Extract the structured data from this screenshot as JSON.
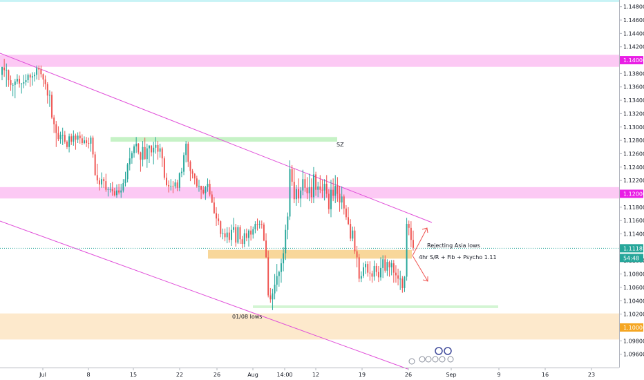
{
  "chart_data": {
    "type": "candlestick",
    "y_axis": {
      "min": 1.094,
      "max": 1.149,
      "tick_labels": [
        "1.14800",
        "1.14600",
        "1.14400",
        "1.14200",
        "1.14000",
        "1.13800",
        "1.13600",
        "1.13400",
        "1.13200",
        "1.13000",
        "1.12800",
        "1.12600",
        "1.12400",
        "1.12200",
        "1.12000",
        "1.11800",
        "1.11600",
        "1.11400",
        "1.11185",
        "1.11000",
        "1.10800",
        "1.10600",
        "1.10400",
        "1.10200",
        "1.10000",
        "1.09800",
        "1.09600"
      ],
      "tick_values": [
        1.148,
        1.146,
        1.144,
        1.142,
        1.14,
        1.138,
        1.136,
        1.134,
        1.132,
        1.13,
        1.128,
        1.126,
        1.124,
        1.122,
        1.12,
        1.118,
        1.116,
        1.114,
        1.11185,
        1.11,
        1.108,
        1.106,
        1.104,
        1.102,
        1.1,
        1.098,
        1.096
      ]
    },
    "x_axis": {
      "tick_labels": [
        "Jul",
        "8",
        "15",
        "22",
        "26",
        "Aug",
        "14:00",
        "12",
        "19",
        "26",
        "Sep",
        "9",
        "16",
        "23"
      ]
    },
    "price_tags": [
      {
        "label": "1.14000",
        "value": 1.14,
        "color": "#e91fe5"
      },
      {
        "label": "1.12000",
        "value": 1.12,
        "color": "#e91fe5"
      },
      {
        "label": "1.11185",
        "value": 1.11185,
        "color": "#26a69a"
      },
      {
        "label": "54:48",
        "value": 1.1104,
        "color": "#26a69a"
      },
      {
        "label": "1.10000",
        "value": 1.1,
        "color": "#f5a623"
      }
    ],
    "zones": [
      {
        "name": "top-band",
        "from": 1.1487,
        "to": 1.1495,
        "color": "#c8f3f6"
      },
      {
        "name": "resistance-1.14",
        "from": 1.139,
        "to": 1.1408,
        "color": "#fcc9f4"
      },
      {
        "name": "resistance-1.12",
        "from": 1.1193,
        "to": 1.121,
        "color": "#fcc9f4"
      },
      {
        "name": "support-1.11",
        "from": 1.1103,
        "to": 1.1116,
        "color": "#f8d79a"
      },
      {
        "name": "support-1.10",
        "from": 1.0982,
        "to": 1.1021,
        "color": "#fde9cc"
      },
      {
        "name": "sz-zone",
        "from": 1.1278,
        "to": 1.1285,
        "color": "#c6f2c6"
      },
      {
        "name": "aug-lows-zone",
        "from": 1.1029,
        "to": 1.1033,
        "color": "#d3f5d3"
      }
    ],
    "annotations": [
      "SZ",
      "Rejecting Asia lows",
      "4hr S/R + Fib + Psycho 1.11",
      "01/08 lows"
    ],
    "current_price": 1.11185,
    "candles": [
      [
        1.1378,
        1.1389,
        1.137,
        1.139
      ],
      [
        1.1389,
        1.1402,
        1.1375,
        1.1385
      ],
      [
        1.1385,
        1.1395,
        1.136,
        1.1385
      ],
      [
        1.1385,
        1.1386,
        1.136,
        1.137
      ],
      [
        1.137,
        1.1377,
        1.1354,
        1.1363
      ],
      [
        1.1363,
        1.1366,
        1.1346,
        1.1363
      ],
      [
        1.1363,
        1.1372,
        1.1343,
        1.1368
      ],
      [
        1.1368,
        1.1379,
        1.1364,
        1.1372
      ],
      [
        1.1372,
        1.1377,
        1.1359,
        1.1365
      ],
      [
        1.1365,
        1.1366,
        1.135,
        1.1365
      ],
      [
        1.1365,
        1.1378,
        1.1358,
        1.1367
      ],
      [
        1.1367,
        1.1379,
        1.1362,
        1.137
      ],
      [
        1.137,
        1.138,
        1.1366,
        1.1378
      ],
      [
        1.1378,
        1.138,
        1.136,
        1.1374
      ],
      [
        1.1374,
        1.1382,
        1.1362,
        1.1376
      ],
      [
        1.1376,
        1.1382,
        1.1368,
        1.1378
      ],
      [
        1.1378,
        1.1392,
        1.1371,
        1.1388
      ],
      [
        1.1388,
        1.1392,
        1.137,
        1.1386
      ],
      [
        1.1386,
        1.1392,
        1.1374,
        1.1379
      ],
      [
        1.1379,
        1.138,
        1.136,
        1.1371
      ],
      [
        1.1371,
        1.1377,
        1.1356,
        1.1364
      ],
      [
        1.1364,
        1.1367,
        1.1335,
        1.1347
      ],
      [
        1.1347,
        1.1355,
        1.133,
        1.1348
      ],
      [
        1.1348,
        1.1353,
        1.1312,
        1.1314
      ],
      [
        1.1314,
        1.1318,
        1.1291,
        1.1304
      ],
      [
        1.1304,
        1.1309,
        1.127,
        1.1291
      ],
      [
        1.1291,
        1.1301,
        1.1279,
        1.1282
      ],
      [
        1.1282,
        1.1293,
        1.1275,
        1.1288
      ],
      [
        1.1288,
        1.1299,
        1.1273,
        1.1288
      ],
      [
        1.1288,
        1.1294,
        1.1275,
        1.1278
      ],
      [
        1.1278,
        1.128,
        1.1267,
        1.127
      ],
      [
        1.127,
        1.129,
        1.1262,
        1.1286
      ],
      [
        1.1286,
        1.129,
        1.1273,
        1.1278
      ],
      [
        1.1278,
        1.1295,
        1.1272,
        1.1287
      ],
      [
        1.1287,
        1.129,
        1.1266,
        1.1281
      ],
      [
        1.1281,
        1.1292,
        1.1276,
        1.1287
      ],
      [
        1.1287,
        1.1293,
        1.1275,
        1.1283
      ],
      [
        1.1283,
        1.1289,
        1.1273,
        1.1276
      ],
      [
        1.1276,
        1.1286,
        1.1274,
        1.128
      ],
      [
        1.128,
        1.1285,
        1.127,
        1.1276
      ],
      [
        1.1276,
        1.1284,
        1.1268,
        1.1275
      ],
      [
        1.1275,
        1.1287,
        1.1263,
        1.1284
      ],
      [
        1.1284,
        1.1287,
        1.1254,
        1.1259
      ],
      [
        1.1259,
        1.1263,
        1.1227,
        1.1228
      ],
      [
        1.1228,
        1.1245,
        1.1215,
        1.122
      ],
      [
        1.122,
        1.1224,
        1.1205,
        1.1214
      ],
      [
        1.1214,
        1.1232,
        1.1209,
        1.1222
      ],
      [
        1.1222,
        1.1225,
        1.1209,
        1.1219
      ],
      [
        1.1219,
        1.123,
        1.1203,
        1.1206
      ],
      [
        1.1206,
        1.121,
        1.1196,
        1.1207
      ],
      [
        1.1207,
        1.1216,
        1.1202,
        1.1207
      ],
      [
        1.1207,
        1.1218,
        1.1197,
        1.1204
      ],
      [
        1.1204,
        1.1209,
        1.1196,
        1.1198
      ],
      [
        1.1198,
        1.1214,
        1.1194,
        1.1205
      ],
      [
        1.1205,
        1.1215,
        1.1199,
        1.1202
      ],
      [
        1.1202,
        1.1215,
        1.1194,
        1.1205
      ],
      [
        1.1205,
        1.1222,
        1.1202,
        1.1216
      ],
      [
        1.1216,
        1.1233,
        1.1211,
        1.1222
      ],
      [
        1.1222,
        1.1246,
        1.1217,
        1.1244
      ],
      [
        1.1244,
        1.1269,
        1.1235,
        1.1253
      ],
      [
        1.1253,
        1.1264,
        1.1245,
        1.1261
      ],
      [
        1.1261,
        1.1274,
        1.1254,
        1.1271
      ],
      [
        1.1271,
        1.1285,
        1.1261,
        1.1275
      ],
      [
        1.1275,
        1.1276,
        1.1259,
        1.1262
      ],
      [
        1.1262,
        1.1263,
        1.1233,
        1.1251
      ],
      [
        1.1251,
        1.1279,
        1.1241,
        1.127
      ],
      [
        1.127,
        1.1284,
        1.1251,
        1.1252
      ],
      [
        1.1252,
        1.1275,
        1.1239,
        1.1268
      ],
      [
        1.1268,
        1.1273,
        1.1246,
        1.1272
      ],
      [
        1.1272,
        1.1273,
        1.1256,
        1.1262
      ],
      [
        1.1262,
        1.1278,
        1.1244,
        1.1269
      ],
      [
        1.1269,
        1.1285,
        1.126,
        1.1273
      ],
      [
        1.1273,
        1.1279,
        1.1251,
        1.1263
      ],
      [
        1.1263,
        1.1275,
        1.1254,
        1.1268
      ],
      [
        1.1268,
        1.127,
        1.124,
        1.1253
      ],
      [
        1.1253,
        1.1256,
        1.1221,
        1.1224
      ],
      [
        1.1224,
        1.1231,
        1.1211,
        1.1213
      ],
      [
        1.1213,
        1.122,
        1.1202,
        1.1211
      ],
      [
        1.1211,
        1.1222,
        1.1205,
        1.1212
      ],
      [
        1.1212,
        1.1219,
        1.1201,
        1.1211
      ],
      [
        1.1211,
        1.1222,
        1.1208,
        1.1217
      ],
      [
        1.1217,
        1.1221,
        1.1204,
        1.1209
      ],
      [
        1.1209,
        1.1232,
        1.1204,
        1.1231
      ],
      [
        1.1231,
        1.1239,
        1.1225,
        1.1233
      ],
      [
        1.1233,
        1.1262,
        1.1228,
        1.1258
      ],
      [
        1.1258,
        1.1279,
        1.1247,
        1.1275
      ],
      [
        1.1275,
        1.1278,
        1.124,
        1.1248
      ],
      [
        1.1248,
        1.125,
        1.1219,
        1.1234
      ],
      [
        1.1234,
        1.1237,
        1.1223,
        1.123
      ],
      [
        1.123,
        1.1231,
        1.1214,
        1.1223
      ],
      [
        1.1223,
        1.1227,
        1.1209,
        1.1211
      ],
      [
        1.1211,
        1.1221,
        1.1203,
        1.1212
      ],
      [
        1.1212,
        1.1212,
        1.1192,
        1.1206
      ],
      [
        1.1206,
        1.1212,
        1.1199,
        1.1201
      ],
      [
        1.1201,
        1.1212,
        1.1191,
        1.121
      ],
      [
        1.121,
        1.1223,
        1.1203,
        1.1215
      ],
      [
        1.1215,
        1.1221,
        1.1196,
        1.1199
      ],
      [
        1.1199,
        1.1204,
        1.1186,
        1.1187
      ],
      [
        1.1187,
        1.1195,
        1.117,
        1.1171
      ],
      [
        1.1171,
        1.118,
        1.1152,
        1.1163
      ],
      [
        1.1163,
        1.117,
        1.1153,
        1.1159
      ],
      [
        1.1159,
        1.116,
        1.1135,
        1.114
      ],
      [
        1.114,
        1.1148,
        1.1132,
        1.1141
      ],
      [
        1.1141,
        1.1148,
        1.1129,
        1.1135
      ],
      [
        1.1135,
        1.115,
        1.1126,
        1.1142
      ],
      [
        1.1142,
        1.115,
        1.1127,
        1.1131
      ],
      [
        1.1131,
        1.1154,
        1.1122,
        1.1146
      ],
      [
        1.1146,
        1.1164,
        1.1142,
        1.115
      ],
      [
        1.115,
        1.1155,
        1.1121,
        1.1127
      ],
      [
        1.1127,
        1.1153,
        1.1125,
        1.115
      ],
      [
        1.115,
        1.1153,
        1.1125,
        1.1132
      ],
      [
        1.1132,
        1.1137,
        1.1119,
        1.1125
      ],
      [
        1.1125,
        1.1147,
        1.112,
        1.1141
      ],
      [
        1.1141,
        1.1148,
        1.1129,
        1.1134
      ],
      [
        1.1134,
        1.1147,
        1.1121,
        1.1145
      ],
      [
        1.1145,
        1.1152,
        1.113,
        1.1139
      ],
      [
        1.1139,
        1.1151,
        1.1133,
        1.1147
      ],
      [
        1.1147,
        1.1159,
        1.1141,
        1.1155
      ],
      [
        1.1155,
        1.1163,
        1.1145,
        1.1154
      ],
      [
        1.1154,
        1.116,
        1.1148,
        1.1155
      ],
      [
        1.1155,
        1.116,
        1.1148,
        1.1154
      ],
      [
        1.1154,
        1.1157,
        1.1129,
        1.113
      ],
      [
        1.113,
        1.1141,
        1.1104,
        1.1105
      ],
      [
        1.1105,
        1.1115,
        1.1045,
        1.1048
      ],
      [
        1.1048,
        1.1059,
        1.1037,
        1.1042
      ],
      [
        1.1042,
        1.1058,
        1.1026,
        1.1051
      ],
      [
        1.1051,
        1.108,
        1.1042,
        1.1064
      ],
      [
        1.1064,
        1.1095,
        1.1054,
        1.1077
      ],
      [
        1.1077,
        1.1085,
        1.1061,
        1.1083
      ],
      [
        1.1083,
        1.1103,
        1.1067,
        1.1096
      ],
      [
        1.1096,
        1.112,
        1.1084,
        1.1111
      ],
      [
        1.1111,
        1.1154,
        1.1101,
        1.1146
      ],
      [
        1.1146,
        1.1172,
        1.1132,
        1.1166
      ],
      [
        1.1166,
        1.125,
        1.1161,
        1.1237
      ],
      [
        1.1237,
        1.1243,
        1.1212,
        1.1218
      ],
      [
        1.1218,
        1.1238,
        1.1186,
        1.1192
      ],
      [
        1.1192,
        1.1213,
        1.1182,
        1.1207
      ],
      [
        1.1207,
        1.1223,
        1.1186,
        1.1193
      ],
      [
        1.1193,
        1.121,
        1.118,
        1.1205
      ],
      [
        1.1205,
        1.1236,
        1.1198,
        1.1222
      ],
      [
        1.1222,
        1.123,
        1.1203,
        1.1209
      ],
      [
        1.1209,
        1.1225,
        1.1192,
        1.1201
      ],
      [
        1.1201,
        1.123,
        1.1189,
        1.121
      ],
      [
        1.121,
        1.1223,
        1.1186,
        1.1195
      ],
      [
        1.1195,
        1.124,
        1.1186,
        1.1229
      ],
      [
        1.1229,
        1.1233,
        1.1197,
        1.1206
      ],
      [
        1.1206,
        1.1218,
        1.1195,
        1.1211
      ],
      [
        1.1211,
        1.1228,
        1.1201,
        1.1206
      ],
      [
        1.1206,
        1.1221,
        1.1194,
        1.1205
      ],
      [
        1.1205,
        1.1222,
        1.119,
        1.1215
      ],
      [
        1.1215,
        1.1228,
        1.1194,
        1.12
      ],
      [
        1.12,
        1.1207,
        1.117,
        1.1177
      ],
      [
        1.1177,
        1.1221,
        1.1165,
        1.1206
      ],
      [
        1.1206,
        1.1223,
        1.1189,
        1.1197
      ],
      [
        1.1197,
        1.1228,
        1.1186,
        1.1212
      ],
      [
        1.1212,
        1.1225,
        1.1188,
        1.12
      ],
      [
        1.12,
        1.1212,
        1.1173,
        1.1187
      ],
      [
        1.1187,
        1.1211,
        1.1177,
        1.1196
      ],
      [
        1.1196,
        1.1199,
        1.1169,
        1.1178
      ],
      [
        1.1178,
        1.1183,
        1.1161,
        1.1165
      ],
      [
        1.1165,
        1.118,
        1.1153,
        1.1155
      ],
      [
        1.1155,
        1.1162,
        1.1129,
        1.1133
      ],
      [
        1.1133,
        1.1151,
        1.1129,
        1.1145
      ],
      [
        1.1145,
        1.1151,
        1.111,
        1.1114
      ],
      [
        1.1114,
        1.1122,
        1.109,
        1.1105
      ],
      [
        1.1105,
        1.111,
        1.1068,
        1.1073
      ],
      [
        1.1073,
        1.1084,
        1.1068,
        1.1077
      ],
      [
        1.1077,
        1.1097,
        1.1074,
        1.109
      ],
      [
        1.109,
        1.1099,
        1.108,
        1.1095
      ],
      [
        1.1095,
        1.1099,
        1.1076,
        1.1082
      ],
      [
        1.1082,
        1.1099,
        1.107,
        1.1081
      ],
      [
        1.1081,
        1.1085,
        1.1067,
        1.1076
      ],
      [
        1.1076,
        1.11,
        1.107,
        1.1092
      ],
      [
        1.1092,
        1.1096,
        1.1077,
        1.1083
      ],
      [
        1.1083,
        1.1092,
        1.1068,
        1.1075
      ],
      [
        1.1075,
        1.1105,
        1.107,
        1.1089
      ],
      [
        1.1089,
        1.1108,
        1.1074,
        1.1102
      ],
      [
        1.1102,
        1.1108,
        1.1082,
        1.1085
      ],
      [
        1.1085,
        1.1102,
        1.1077,
        1.1098
      ],
      [
        1.1098,
        1.11,
        1.1076,
        1.109
      ],
      [
        1.109,
        1.1101,
        1.1078,
        1.1096
      ],
      [
        1.1096,
        1.1101,
        1.1067,
        1.1082
      ],
      [
        1.1082,
        1.1093,
        1.1067,
        1.1078
      ],
      [
        1.1078,
        1.1088,
        1.1063,
        1.1073
      ],
      [
        1.1073,
        1.1085,
        1.1056,
        1.1073
      ],
      [
        1.1073,
        1.1077,
        1.1052,
        1.1059
      ],
      [
        1.1059,
        1.1077,
        1.1053,
        1.1076
      ],
      [
        1.1076,
        1.1164,
        1.107,
        1.1155
      ],
      [
        1.1155,
        1.116,
        1.1138,
        1.1149
      ],
      [
        1.1149,
        1.1159,
        1.112,
        1.1131
      ],
      [
        1.1131,
        1.1145,
        1.1115,
        1.1119
      ]
    ]
  }
}
